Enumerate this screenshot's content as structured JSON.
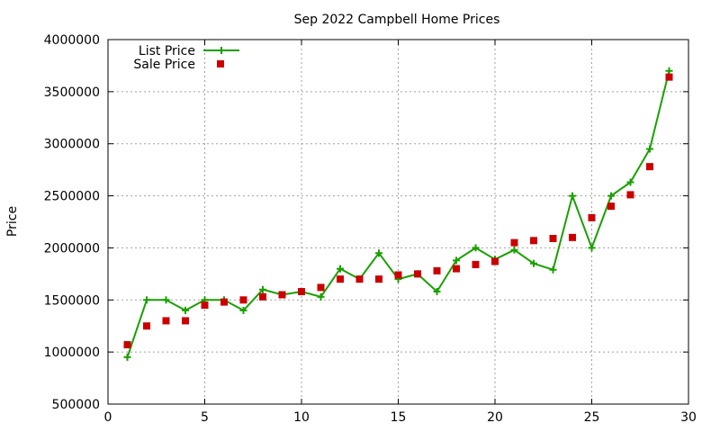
{
  "chart_data": {
    "type": "line",
    "title": "Sep 2022 Campbell Home Prices",
    "xlabel": "",
    "ylabel": "Price",
    "xlim": [
      0,
      30
    ],
    "ylim": [
      500000,
      4000000
    ],
    "xticks": [
      0,
      5,
      10,
      15,
      20,
      25,
      30
    ],
    "yticks": [
      500000,
      1000000,
      1500000,
      2000000,
      2500000,
      3000000,
      3500000,
      4000000
    ],
    "grid": true,
    "legend_position": "top-left",
    "x": [
      1,
      2,
      3,
      4,
      5,
      6,
      7,
      8,
      9,
      10,
      11,
      12,
      13,
      14,
      15,
      16,
      17,
      18,
      19,
      20,
      21,
      22,
      23,
      24,
      25,
      26,
      27,
      28,
      29
    ],
    "series": [
      {
        "name": "List Price",
        "style": "line-with-plus-markers",
        "color": "#1aa000",
        "values": [
          950000,
          1500000,
          1500000,
          1400000,
          1500000,
          1500000,
          1400000,
          1600000,
          1550000,
          1580000,
          1530000,
          1800000,
          1700000,
          1950000,
          1700000,
          1750000,
          1580000,
          1880000,
          2000000,
          1890000,
          1980000,
          1850000,
          1790000,
          2500000,
          2000000,
          2500000,
          2630000,
          2950000,
          3700000
        ]
      },
      {
        "name": "Sale Price",
        "style": "square-markers",
        "color": "#cc0000",
        "values": [
          1070000,
          1250000,
          1300000,
          1300000,
          1450000,
          1480000,
          1500000,
          1530000,
          1550000,
          1580000,
          1620000,
          1700000,
          1700000,
          1700000,
          1740000,
          1750000,
          1780000,
          1800000,
          1840000,
          1870000,
          2050000,
          2070000,
          2090000,
          2100000,
          2290000,
          2400000,
          2510000,
          2780000,
          3640000
        ]
      }
    ]
  }
}
